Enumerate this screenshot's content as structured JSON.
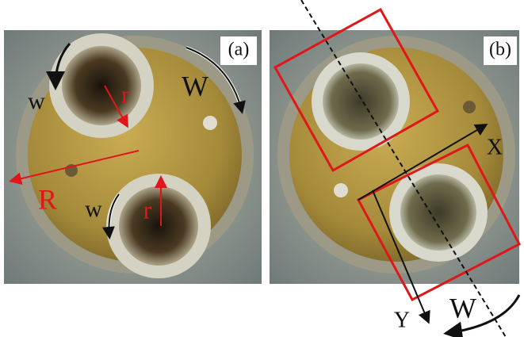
{
  "panels": [
    {
      "label": "(a)",
      "annotations": [
        "w",
        "W",
        "r",
        "R",
        "w",
        "r"
      ]
    },
    {
      "label": "(b)",
      "annotations": [
        "X",
        "Y",
        "W"
      ]
    }
  ]
}
